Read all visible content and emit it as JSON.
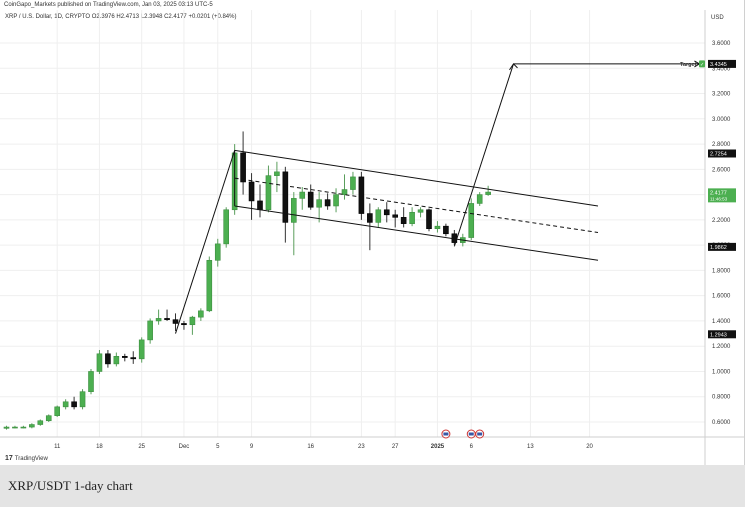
{
  "header": {
    "publisher": "CoinGapo_Markets published on TradingView.com, Jan 03, 2025 03:13 UTC-5",
    "symbol_line": "XRP / U.S. Dollar, 1D, CRYPTO  O2.3976  H2.4713  L2.3948  C2.4177  +0.0201 (+0.84%)",
    "currency": "USD"
  },
  "footer": {
    "logo_text": "TradingView",
    "caption": "XRP/USDT 1-day chart"
  },
  "colors": {
    "up": "#4caf50",
    "down": "#111111",
    "line": "#111111",
    "grid": "#efefef"
  },
  "chart_data": {
    "type": "candlestick",
    "title": "",
    "ylabel": "",
    "xlabel": "",
    "ylim": [
      0.45,
      3.85
    ],
    "grid": true,
    "y_ticks": [
      "0.6000",
      "0.8000",
      "1.0000",
      "1.2000",
      "1.4000",
      "1.6000",
      "1.8000",
      "2.0000",
      "2.2000",
      "2.4000",
      "2.6000",
      "2.8000",
      "3.0000",
      "3.2000",
      "3.4000",
      "3.6000"
    ],
    "x_ticks": [
      {
        "i": 6,
        "label": "11"
      },
      {
        "i": 11,
        "label": "18"
      },
      {
        "i": 16,
        "label": "25"
      },
      {
        "i": 21,
        "label": "Dec"
      },
      {
        "i": 25,
        "label": "5"
      },
      {
        "i": 29,
        "label": "9"
      },
      {
        "i": 36,
        "label": "16"
      },
      {
        "i": 42,
        "label": "23"
      },
      {
        "i": 46,
        "label": "27"
      },
      {
        "i": 51,
        "label": "2025"
      },
      {
        "i": 55,
        "label": "6"
      },
      {
        "i": 62,
        "label": "13"
      },
      {
        "i": 69,
        "label": "20"
      }
    ],
    "price_labels": [
      {
        "value": 3.4345,
        "text": "3.4345",
        "name": "Target"
      },
      {
        "value": 2.7254,
        "text": "2.7254"
      },
      {
        "value": 2.4177,
        "text": "2.4177",
        "sub": "11:46:53",
        "current": true
      },
      {
        "value": 1.9862,
        "text": "1.9862"
      },
      {
        "value": 1.2943,
        "text": "1.2943"
      }
    ],
    "target_label": "Target",
    "candles": [
      {
        "o": 0.55,
        "h": 0.57,
        "l": 0.54,
        "c": 0.56
      },
      {
        "o": 0.56,
        "h": 0.57,
        "l": 0.55,
        "c": 0.56
      },
      {
        "o": 0.56,
        "h": 0.57,
        "l": 0.55,
        "c": 0.56
      },
      {
        "o": 0.56,
        "h": 0.59,
        "l": 0.55,
        "c": 0.58
      },
      {
        "o": 0.58,
        "h": 0.62,
        "l": 0.57,
        "c": 0.61
      },
      {
        "o": 0.61,
        "h": 0.66,
        "l": 0.6,
        "c": 0.65
      },
      {
        "o": 0.65,
        "h": 0.73,
        "l": 0.64,
        "c": 0.72
      },
      {
        "o": 0.72,
        "h": 0.78,
        "l": 0.7,
        "c": 0.76
      },
      {
        "o": 0.76,
        "h": 0.8,
        "l": 0.7,
        "c": 0.72
      },
      {
        "o": 0.72,
        "h": 0.86,
        "l": 0.7,
        "c": 0.84
      },
      {
        "o": 0.84,
        "h": 1.02,
        "l": 0.82,
        "c": 1.0
      },
      {
        "o": 1.0,
        "h": 1.17,
        "l": 0.98,
        "c": 1.14
      },
      {
        "o": 1.14,
        "h": 1.17,
        "l": 1.03,
        "c": 1.06
      },
      {
        "o": 1.06,
        "h": 1.15,
        "l": 1.04,
        "c": 1.12
      },
      {
        "o": 1.12,
        "h": 1.14,
        "l": 1.08,
        "c": 1.11
      },
      {
        "o": 1.11,
        "h": 1.16,
        "l": 1.06,
        "c": 1.1
      },
      {
        "o": 1.1,
        "h": 1.27,
        "l": 1.07,
        "c": 1.25
      },
      {
        "o": 1.25,
        "h": 1.42,
        "l": 1.22,
        "c": 1.4
      },
      {
        "o": 1.4,
        "h": 1.49,
        "l": 1.37,
        "c": 1.42
      },
      {
        "o": 1.42,
        "h": 1.49,
        "l": 1.4,
        "c": 1.41
      },
      {
        "o": 1.41,
        "h": 1.46,
        "l": 1.32,
        "c": 1.38
      },
      {
        "o": 1.38,
        "h": 1.4,
        "l": 1.33,
        "c": 1.37
      },
      {
        "o": 1.37,
        "h": 1.44,
        "l": 1.29,
        "c": 1.43
      },
      {
        "o": 1.43,
        "h": 1.5,
        "l": 1.4,
        "c": 1.48
      },
      {
        "o": 1.48,
        "h": 1.91,
        "l": 1.47,
        "c": 1.88
      },
      {
        "o": 1.88,
        "h": 2.05,
        "l": 1.83,
        "c": 2.01
      },
      {
        "o": 2.01,
        "h": 2.3,
        "l": 1.98,
        "c": 2.28
      },
      {
        "o": 2.28,
        "h": 2.8,
        "l": 2.24,
        "c": 2.73
      },
      {
        "o": 2.73,
        "h": 2.9,
        "l": 2.4,
        "c": 2.5
      },
      {
        "o": 2.5,
        "h": 2.57,
        "l": 2.2,
        "c": 2.35
      },
      {
        "o": 2.35,
        "h": 2.48,
        "l": 2.22,
        "c": 2.28
      },
      {
        "o": 2.28,
        "h": 2.63,
        "l": 2.26,
        "c": 2.55
      },
      {
        "o": 2.55,
        "h": 2.66,
        "l": 2.42,
        "c": 2.58
      },
      {
        "o": 2.58,
        "h": 2.62,
        "l": 2.02,
        "c": 2.18
      },
      {
        "o": 2.18,
        "h": 2.42,
        "l": 1.92,
        "c": 2.37
      },
      {
        "o": 2.37,
        "h": 2.46,
        "l": 2.28,
        "c": 2.42
      },
      {
        "o": 2.42,
        "h": 2.48,
        "l": 2.28,
        "c": 2.3
      },
      {
        "o": 2.3,
        "h": 2.42,
        "l": 2.18,
        "c": 2.36
      },
      {
        "o": 2.36,
        "h": 2.41,
        "l": 2.28,
        "c": 2.31
      },
      {
        "o": 2.31,
        "h": 2.45,
        "l": 2.26,
        "c": 2.4
      },
      {
        "o": 2.4,
        "h": 2.56,
        "l": 2.36,
        "c": 2.44
      },
      {
        "o": 2.44,
        "h": 2.58,
        "l": 2.4,
        "c": 2.54
      },
      {
        "o": 2.54,
        "h": 2.58,
        "l": 2.2,
        "c": 2.25
      },
      {
        "o": 2.25,
        "h": 2.33,
        "l": 1.96,
        "c": 2.18
      },
      {
        "o": 2.18,
        "h": 2.3,
        "l": 2.14,
        "c": 2.28
      },
      {
        "o": 2.28,
        "h": 2.34,
        "l": 2.18,
        "c": 2.24
      },
      {
        "o": 2.24,
        "h": 2.28,
        "l": 2.14,
        "c": 2.22
      },
      {
        "o": 2.22,
        "h": 2.3,
        "l": 2.14,
        "c": 2.17
      },
      {
        "o": 2.17,
        "h": 2.3,
        "l": 2.15,
        "c": 2.26
      },
      {
        "o": 2.26,
        "h": 2.3,
        "l": 2.22,
        "c": 2.28
      },
      {
        "o": 2.28,
        "h": 2.29,
        "l": 2.11,
        "c": 2.13
      },
      {
        "o": 2.13,
        "h": 2.19,
        "l": 2.1,
        "c": 2.15
      },
      {
        "o": 2.15,
        "h": 2.17,
        "l": 2.07,
        "c": 2.09
      },
      {
        "o": 2.09,
        "h": 2.12,
        "l": 2.0,
        "c": 2.02
      },
      {
        "o": 2.02,
        "h": 2.09,
        "l": 1.99,
        "c": 2.06
      },
      {
        "o": 2.06,
        "h": 2.37,
        "l": 2.04,
        "c": 2.33
      },
      {
        "o": 2.33,
        "h": 2.42,
        "l": 2.31,
        "c": 2.4
      },
      {
        "o": 2.4,
        "h": 2.47,
        "l": 2.39,
        "c": 2.42
      }
    ],
    "channel": {
      "upper": [
        {
          "i": 27,
          "v": 2.75
        },
        {
          "i": 70,
          "v": 2.31
        }
      ],
      "lower": [
        {
          "i": 27,
          "v": 2.31
        },
        {
          "i": 70,
          "v": 1.88
        }
      ],
      "mid": [
        {
          "i": 27,
          "v": 2.53
        },
        {
          "i": 70,
          "v": 2.1
        }
      ]
    },
    "trend_lines": [
      {
        "from": {
          "i": 20,
          "v": 1.3
        },
        "to": {
          "i": 27,
          "v": 2.75
        }
      },
      {
        "from": {
          "i": 27,
          "v": 2.75
        },
        "to": {
          "i": 27,
          "v": 2.31
        }
      },
      {
        "from": {
          "i": 53,
          "v": 1.99
        },
        "to": {
          "i": 60,
          "v": 3.4345
        }
      },
      {
        "from": {
          "i": 60,
          "v": 3.4345
        },
        "to": {
          "i": 82,
          "v": 3.4345
        }
      }
    ],
    "event_icons": [
      {
        "i": 52,
        "name": "us-flag-event-icon"
      },
      {
        "i": 55,
        "name": "us-flag-event-icon"
      },
      {
        "i": 56,
        "name": "us-flag-event-icon"
      }
    ]
  }
}
